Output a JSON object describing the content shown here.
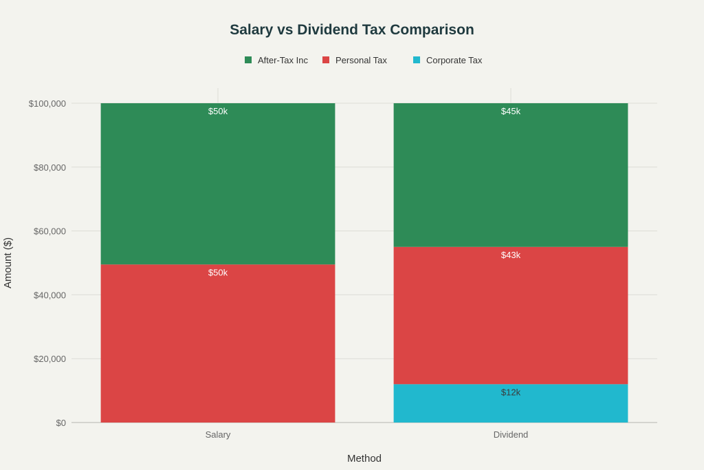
{
  "chart_data": {
    "type": "bar",
    "stacked": true,
    "title": "Salary vs Dividend Tax Comparison",
    "xlabel": "Method",
    "ylabel": "Amount ($)",
    "categories": [
      "Salary",
      "Dividend"
    ],
    "ylim": [
      0,
      100000
    ],
    "yticks": [
      0,
      20000,
      40000,
      60000,
      80000,
      100000
    ],
    "ytick_labels": [
      "$0",
      "$20,000",
      "$40,000",
      "$60,000",
      "$80,000",
      "$100,000"
    ],
    "legend_position": "top-center",
    "grid": true,
    "series": [
      {
        "name": "Corporate Tax",
        "color": "#21b8ce",
        "values": [
          0,
          12000
        ],
        "labels": [
          "",
          "$12k"
        ],
        "label_color": "dark"
      },
      {
        "name": "Personal Tax",
        "color": "#db4545",
        "values": [
          49500,
          43000
        ],
        "labels": [
          "$50k",
          "$43k"
        ],
        "label_color": "light"
      },
      {
        "name": "After-Tax Inc",
        "color": "#2e8b57",
        "values": [
          50500,
          45000
        ],
        "labels": [
          "$50k",
          "$45k"
        ],
        "label_color": "light"
      }
    ],
    "legend_order": [
      "After-Tax Inc",
      "Personal Tax",
      "Corporate Tax"
    ]
  }
}
